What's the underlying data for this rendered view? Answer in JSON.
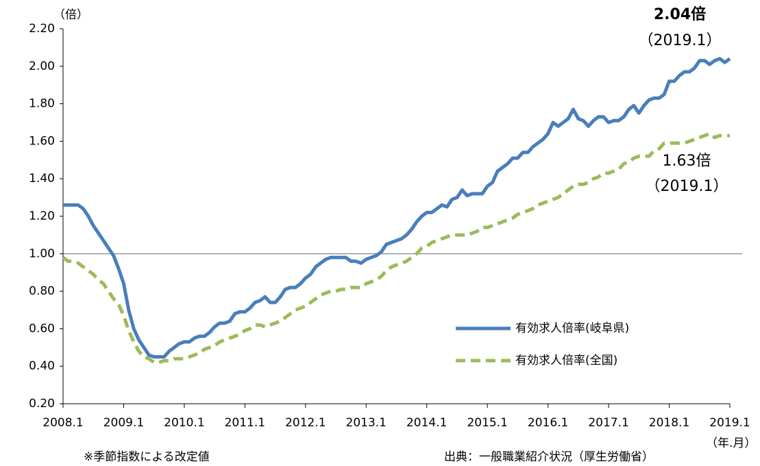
{
  "chart_data": {
    "type": "line",
    "y_unit": "（倍）",
    "x_unit": "（年.月）",
    "categories": [
      "2008.1",
      null,
      null,
      null,
      null,
      null,
      null,
      null,
      null,
      null,
      null,
      null,
      "2009.1",
      null,
      null,
      null,
      null,
      null,
      null,
      null,
      null,
      null,
      null,
      null,
      "2010.1",
      null,
      null,
      null,
      null,
      null,
      null,
      null,
      null,
      null,
      null,
      null,
      "2011.1",
      null,
      null,
      null,
      null,
      null,
      null,
      null,
      null,
      null,
      null,
      null,
      "2012.1",
      null,
      null,
      null,
      null,
      null,
      null,
      null,
      null,
      null,
      null,
      null,
      "2013.1",
      null,
      null,
      null,
      null,
      null,
      null,
      null,
      null,
      null,
      null,
      null,
      "2014.1",
      null,
      null,
      null,
      null,
      null,
      null,
      null,
      null,
      null,
      null,
      null,
      "2015.1",
      null,
      null,
      null,
      null,
      null,
      null,
      null,
      null,
      null,
      null,
      null,
      "2016.1",
      null,
      null,
      null,
      null,
      null,
      null,
      null,
      null,
      null,
      null,
      null,
      "2017.1",
      null,
      null,
      null,
      null,
      null,
      null,
      null,
      null,
      null,
      null,
      null,
      "2018.1",
      null,
      null,
      null,
      null,
      null,
      null,
      null,
      null,
      null,
      null,
      null,
      "2019.1"
    ],
    "series": [
      {
        "name": "有効求人倍率(岐阜県)",
        "color": "#4a7ebb",
        "dash": false,
        "values": [
          1.26,
          1.26,
          1.26,
          1.26,
          1.24,
          1.2,
          1.15,
          1.11,
          1.07,
          1.03,
          0.99,
          0.92,
          0.84,
          0.7,
          0.6,
          0.54,
          0.5,
          0.46,
          0.45,
          0.45,
          0.45,
          0.48,
          0.5,
          0.52,
          0.53,
          0.53,
          0.55,
          0.56,
          0.56,
          0.58,
          0.61,
          0.63,
          0.63,
          0.64,
          0.68,
          0.69,
          0.69,
          0.71,
          0.74,
          0.75,
          0.77,
          0.74,
          0.74,
          0.77,
          0.81,
          0.82,
          0.82,
          0.84,
          0.87,
          0.89,
          0.93,
          0.95,
          0.97,
          0.98,
          0.98,
          0.98,
          0.98,
          0.96,
          0.96,
          0.95,
          0.97,
          0.98,
          0.99,
          1.01,
          1.05,
          1.06,
          1.07,
          1.08,
          1.1,
          1.13,
          1.17,
          1.2,
          1.22,
          1.22,
          1.24,
          1.26,
          1.25,
          1.29,
          1.3,
          1.34,
          1.31,
          1.32,
          1.32,
          1.32,
          1.36,
          1.38,
          1.44,
          1.46,
          1.48,
          1.51,
          1.51,
          1.54,
          1.54,
          1.57,
          1.59,
          1.61,
          1.64,
          1.7,
          1.68,
          1.7,
          1.72,
          1.77,
          1.72,
          1.71,
          1.68,
          1.71,
          1.73,
          1.73,
          1.7,
          1.71,
          1.71,
          1.73,
          1.77,
          1.79,
          1.75,
          1.79,
          1.82,
          1.83,
          1.83,
          1.85,
          1.92,
          1.92,
          1.95,
          1.97,
          1.97,
          1.99,
          2.03,
          2.03,
          2.01,
          2.03,
          2.04,
          2.02,
          2.04
        ]
      },
      {
        "name": "有効求人倍率(全国)",
        "color": "#9bbb59",
        "dash": true,
        "values": [
          0.98,
          0.96,
          0.96,
          0.95,
          0.93,
          0.91,
          0.89,
          0.86,
          0.84,
          0.8,
          0.76,
          0.73,
          0.67,
          0.59,
          0.53,
          0.48,
          0.45,
          0.44,
          0.42,
          0.42,
          0.43,
          0.43,
          0.44,
          0.44,
          0.44,
          0.45,
          0.46,
          0.47,
          0.49,
          0.5,
          0.51,
          0.53,
          0.54,
          0.55,
          0.56,
          0.57,
          0.59,
          0.6,
          0.62,
          0.62,
          0.61,
          0.62,
          0.63,
          0.64,
          0.66,
          0.68,
          0.7,
          0.71,
          0.72,
          0.74,
          0.76,
          0.78,
          0.79,
          0.8,
          0.8,
          0.81,
          0.81,
          0.82,
          0.82,
          0.82,
          0.84,
          0.85,
          0.86,
          0.88,
          0.91,
          0.93,
          0.94,
          0.95,
          0.96,
          0.98,
          1.0,
          1.03,
          1.04,
          1.06,
          1.07,
          1.08,
          1.09,
          1.1,
          1.1,
          1.1,
          1.1,
          1.11,
          1.12,
          1.14,
          1.14,
          1.15,
          1.16,
          1.17,
          1.18,
          1.19,
          1.21,
          1.22,
          1.23,
          1.24,
          1.26,
          1.27,
          1.28,
          1.29,
          1.3,
          1.32,
          1.34,
          1.36,
          1.37,
          1.37,
          1.38,
          1.4,
          1.41,
          1.43,
          1.43,
          1.44,
          1.45,
          1.48,
          1.49,
          1.51,
          1.52,
          1.52,
          1.52,
          1.55,
          1.56,
          1.59,
          1.59,
          1.59,
          1.59,
          1.59,
          1.6,
          1.61,
          1.62,
          1.63,
          1.64,
          1.62,
          1.63,
          1.63,
          1.63
        ]
      }
    ],
    "ylim": [
      0.2,
      2.2
    ],
    "yticks": [
      {
        "value": 0.2,
        "label": "0.20"
      },
      {
        "value": 0.4,
        "label": "0.40"
      },
      {
        "value": 0.6,
        "label": "0.60"
      },
      {
        "value": 0.8,
        "label": "0.80"
      },
      {
        "value": 1,
        "label": "1.00"
      },
      {
        "value": 1.2,
        "label": "1.20"
      },
      {
        "value": 1.4,
        "label": "1.40"
      },
      {
        "value": 1.6,
        "label": "1.60"
      },
      {
        "value": 1.8,
        "label": "1.80"
      },
      {
        "value": 2,
        "label": "2.00"
      },
      {
        "value": 2.2,
        "label": "2.20"
      }
    ],
    "reference_line": 1,
    "annotations": [
      {
        "text": "2.04倍",
        "sub": "（2019.1）"
      },
      {
        "text": "1.63倍",
        "sub": "（2019.1）"
      }
    ],
    "notes": [
      "※季節指数による改定値",
      "出典：一般職業紹介状況（厚生労働省）"
    ]
  }
}
